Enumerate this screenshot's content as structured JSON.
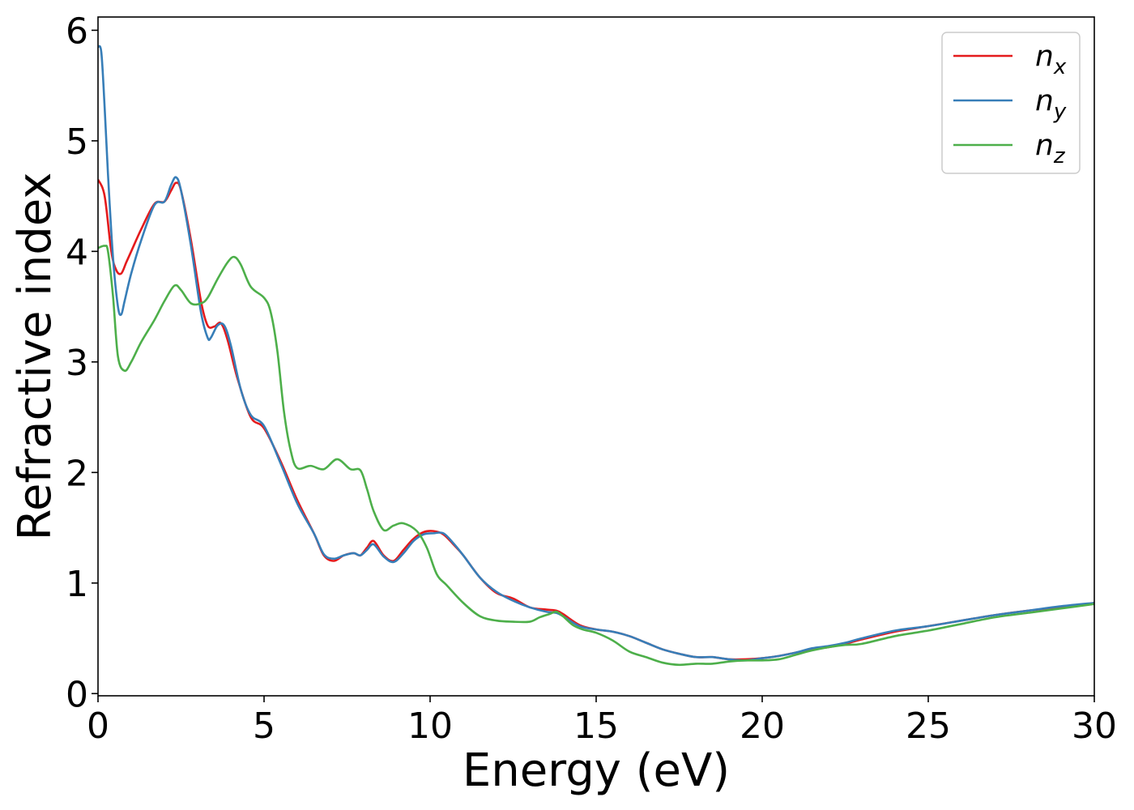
{
  "chart_data": {
    "type": "line",
    "title": "",
    "xlabel": "Energy (eV)",
    "ylabel": "Refractive index",
    "xlim": [
      0,
      30
    ],
    "ylim": [
      -0.02,
      6.12
    ],
    "xticks": [
      0,
      5,
      10,
      15,
      20,
      25,
      30
    ],
    "yticks": [
      0,
      1,
      2,
      3,
      4,
      5,
      6
    ],
    "xtick_labels": [
      "0",
      "5",
      "10",
      "15",
      "20",
      "25",
      "30"
    ],
    "ytick_labels": [
      "0",
      "1",
      "2",
      "3",
      "4",
      "5",
      "6"
    ],
    "grid": false,
    "legend_position": "top-right",
    "series": [
      {
        "name": "n_x",
        "label_base": "n",
        "label_sub": "x",
        "color": "#e41a1c",
        "x": [
          0,
          0.2,
          0.4,
          0.55,
          0.7,
          0.85,
          1.0,
          1.3,
          1.7,
          2.0,
          2.2,
          2.35,
          2.5,
          2.8,
          3.1,
          3.3,
          3.5,
          3.7,
          3.9,
          4.2,
          4.6,
          5.0,
          5.5,
          6.0,
          6.5,
          6.8,
          7.1,
          7.4,
          7.7,
          7.9,
          8.1,
          8.3,
          8.6,
          8.9,
          9.2,
          9.5,
          9.8,
          10.1,
          10.4,
          10.7,
          11.0,
          11.5,
          12.0,
          12.5,
          13.0,
          13.5,
          13.8,
          14.0,
          14.5,
          15.0,
          15.5,
          16.0,
          16.5,
          17.0,
          17.5,
          18.0,
          18.5,
          19.0,
          19.5,
          20.0,
          20.5,
          21.0,
          21.5,
          22.0,
          22.5,
          23.0,
          24.0,
          25.0,
          26.0,
          27.0,
          28.0,
          29.0,
          30.0
        ],
        "y": [
          4.65,
          4.5,
          4.0,
          3.83,
          3.8,
          3.9,
          4.0,
          4.2,
          4.43,
          4.45,
          4.55,
          4.62,
          4.55,
          4.1,
          3.55,
          3.33,
          3.32,
          3.35,
          3.2,
          2.85,
          2.5,
          2.4,
          2.1,
          1.75,
          1.45,
          1.25,
          1.2,
          1.25,
          1.27,
          1.25,
          1.32,
          1.38,
          1.25,
          1.2,
          1.3,
          1.4,
          1.46,
          1.47,
          1.44,
          1.35,
          1.25,
          1.05,
          0.91,
          0.86,
          0.78,
          0.76,
          0.75,
          0.72,
          0.62,
          0.58,
          0.56,
          0.52,
          0.46,
          0.4,
          0.36,
          0.33,
          0.33,
          0.31,
          0.31,
          0.32,
          0.34,
          0.37,
          0.4,
          0.42,
          0.45,
          0.49,
          0.56,
          0.61,
          0.66,
          0.71,
          0.75,
          0.78,
          0.82
        ]
      },
      {
        "name": "n_y",
        "label_base": "n",
        "label_sub": "y",
        "color": "#377eb8",
        "x": [
          0,
          0.1,
          0.2,
          0.3,
          0.45,
          0.6,
          0.7,
          0.8,
          1.0,
          1.3,
          1.7,
          2.0,
          2.2,
          2.35,
          2.5,
          2.8,
          3.1,
          3.3,
          3.4,
          3.6,
          3.8,
          4.0,
          4.3,
          4.6,
          5.0,
          5.5,
          6.0,
          6.5,
          6.8,
          7.1,
          7.4,
          7.7,
          7.9,
          8.1,
          8.3,
          8.6,
          8.9,
          9.2,
          9.5,
          9.8,
          10.1,
          10.4,
          10.7,
          11.0,
          11.5,
          12.0,
          12.5,
          13.0,
          13.5,
          13.8,
          14.0,
          14.5,
          15.0,
          15.5,
          16.0,
          16.5,
          17.0,
          17.5,
          18.0,
          18.5,
          19.0,
          19.5,
          20.0,
          20.5,
          21.0,
          21.5,
          22.0,
          22.5,
          23.0,
          24.0,
          25.0,
          26.0,
          27.0,
          28.0,
          29.0,
          30.0
        ],
        "y": [
          5.85,
          5.8,
          5.3,
          4.7,
          3.95,
          3.5,
          3.43,
          3.55,
          3.8,
          4.1,
          4.42,
          4.45,
          4.6,
          4.67,
          4.55,
          4.05,
          3.45,
          3.22,
          3.22,
          3.33,
          3.33,
          3.15,
          2.75,
          2.52,
          2.42,
          2.08,
          1.72,
          1.45,
          1.26,
          1.22,
          1.25,
          1.27,
          1.25,
          1.3,
          1.35,
          1.24,
          1.19,
          1.27,
          1.38,
          1.44,
          1.45,
          1.45,
          1.36,
          1.25,
          1.05,
          0.92,
          0.84,
          0.78,
          0.74,
          0.73,
          0.7,
          0.61,
          0.58,
          0.56,
          0.52,
          0.46,
          0.4,
          0.36,
          0.33,
          0.33,
          0.31,
          0.3,
          0.32,
          0.34,
          0.37,
          0.41,
          0.43,
          0.46,
          0.5,
          0.57,
          0.61,
          0.66,
          0.71,
          0.75,
          0.79,
          0.82
        ]
      },
      {
        "name": "n_z",
        "label_base": "n",
        "label_sub": "z",
        "color": "#4daf4a",
        "x": [
          0,
          0.2,
          0.3,
          0.45,
          0.6,
          0.8,
          1.0,
          1.3,
          1.7,
          2.0,
          2.3,
          2.5,
          2.8,
          3.1,
          3.3,
          3.6,
          3.9,
          4.1,
          4.3,
          4.6,
          5.0,
          5.2,
          5.4,
          5.6,
          5.8,
          6.0,
          6.4,
          6.8,
          7.2,
          7.6,
          7.9,
          8.1,
          8.3,
          8.6,
          8.9,
          9.2,
          9.6,
          9.9,
          10.2,
          10.5,
          11.0,
          11.5,
          12.0,
          12.5,
          13.0,
          13.3,
          13.6,
          13.8,
          14.0,
          14.3,
          14.6,
          15.0,
          15.5,
          16.0,
          16.5,
          17.0,
          17.5,
          18.0,
          18.5,
          19.0,
          19.5,
          20.0,
          20.5,
          21.0,
          21.5,
          22.0,
          22.5,
          23.0,
          24.0,
          25.0,
          26.0,
          27.0,
          28.0,
          29.0,
          30.0
        ],
        "y": [
          4.03,
          4.05,
          4.0,
          3.6,
          3.05,
          2.92,
          3.0,
          3.18,
          3.38,
          3.55,
          3.69,
          3.65,
          3.53,
          3.53,
          3.58,
          3.75,
          3.9,
          3.95,
          3.88,
          3.68,
          3.58,
          3.45,
          3.1,
          2.55,
          2.2,
          2.04,
          2.06,
          2.03,
          2.12,
          2.03,
          2.02,
          1.85,
          1.65,
          1.48,
          1.52,
          1.54,
          1.47,
          1.32,
          1.08,
          0.98,
          0.82,
          0.7,
          0.66,
          0.65,
          0.65,
          0.69,
          0.72,
          0.74,
          0.7,
          0.62,
          0.58,
          0.55,
          0.48,
          0.38,
          0.33,
          0.28,
          0.26,
          0.27,
          0.27,
          0.29,
          0.3,
          0.3,
          0.31,
          0.35,
          0.39,
          0.42,
          0.44,
          0.45,
          0.52,
          0.57,
          0.63,
          0.69,
          0.73,
          0.77,
          0.81
        ]
      }
    ]
  }
}
